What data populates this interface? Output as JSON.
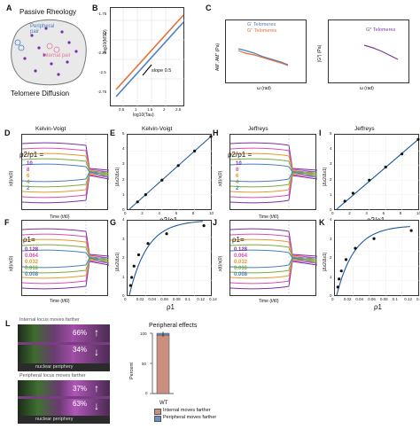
{
  "panel_a": {
    "letter": "A",
    "title": "Passive Rheology",
    "peripheral_label": "Peripheral\npair",
    "internal_label": "Internal pair",
    "footer": "Telomere Diffusion"
  },
  "panel_b": {
    "letter": "B",
    "ylabel": "log10(MSD)",
    "xlabel": "log10(Tau)",
    "slope_label": "slope 0.5",
    "yticks": [
      "-1.75",
      "-2",
      "-2.25",
      "-2.5",
      "-2.75"
    ],
    "xticks": [
      "0.5",
      "1",
      "1.5",
      "2",
      "2.5"
    ]
  },
  "panel_c": {
    "letter": "C",
    "left_ylabel": "AM', AM'' (Pa)",
    "legend_g1": "G' Telomeres",
    "legend_g2": "G'' Telomeres",
    "right_ylabel": "|G*| (Pa)",
    "right_legend": "G* Telomeres",
    "xlabel": "ω (rad)",
    "colors": {
      "g1": "#4a7fc1",
      "g2": "#e0703a",
      "gstar": "#7b3a9c"
    }
  },
  "panel_d": {
    "letter": "D",
    "title": "Kelvin-Voigt",
    "ratio_label": "ρ2/ρ1 =",
    "legend": [
      "10",
      "8",
      "6",
      "4",
      "2"
    ],
    "ylabel": "x(t)/x(0)",
    "xlabel": "Time (t/t0)",
    "xticks": [
      "0",
      "1",
      "2",
      "3",
      "4",
      "5",
      "6",
      "7",
      "8"
    ]
  },
  "panel_e": {
    "letter": "E",
    "title": "Kelvin-Voigt",
    "ylabel": "|Δx2/Δx1|",
    "xlabel": "ρ2/ρ1",
    "xticks": [
      "0",
      "2",
      "4",
      "6",
      "8",
      "10"
    ],
    "yticks": [
      "0",
      "1",
      "2",
      "3",
      "4",
      "5"
    ]
  },
  "panel_f": {
    "letter": "F",
    "ratio_label": "ρ1=",
    "legend": [
      "0.128",
      "0.064",
      "0.032",
      "0.016",
      "0.008"
    ],
    "ylabel": "x(t)/x(0)",
    "xlabel": "Time (t/t0)"
  },
  "panel_g": {
    "letter": "G",
    "ylabel": "|Δx2/Δx1|",
    "xlabel": "ρ1",
    "xticks": [
      "0",
      "0.02",
      "0.04",
      "0.06",
      "0.08",
      "0.1",
      "0.12",
      "0.14"
    ],
    "yticks": [
      "0",
      "1",
      "2",
      "3",
      "4"
    ]
  },
  "panel_h": {
    "letter": "H",
    "title": "Jeffreys",
    "ratio_label": "ρ2/ρ1 =",
    "legend": [
      "10",
      "8",
      "6",
      "4",
      "2"
    ],
    "ylabel": "x(t)/x(0)",
    "xlabel": "Time (t/t0)"
  },
  "panel_i": {
    "letter": "I",
    "title": "Jeffreys",
    "ylabel": "|Δx2/Δx1|",
    "xlabel": "ρ2/ρ1",
    "xticks": [
      "0",
      "2",
      "4",
      "6",
      "8",
      "10"
    ],
    "yticks": [
      "0",
      "1",
      "2",
      "3",
      "4",
      "5"
    ]
  },
  "panel_j": {
    "letter": "J",
    "ratio_label": "ρ1=",
    "legend": [
      "0.128",
      "0.064",
      "0.032",
      "0.016",
      "0.008"
    ],
    "ylabel": "x(t)/x(0)",
    "xlabel": "Time (t/t0)"
  },
  "panel_k": {
    "letter": "K",
    "ylabel": "|Δx2/Δx1|",
    "xlabel": "ρ1",
    "xticks": [
      "0",
      "0.02",
      "0.04",
      "0.06",
      "0.08",
      "0.1",
      "0.12",
      "0.14"
    ],
    "yticks": [
      "0",
      "1",
      "2",
      "3",
      "4"
    ]
  },
  "panel_l": {
    "letter": "L",
    "top_title": "Internal locus moves farther",
    "top_pct_a": "66%",
    "top_pct_b": "34%",
    "top_footer": "nuclear periphery",
    "bottom_title": "Peripheral locus moves farther",
    "bottom_pct_a": "37%",
    "bottom_pct_b": "63%",
    "bottom_footer": "nuclear periphery",
    "bar_title": "Peripheral effects",
    "bar_ylabel": "Percent",
    "bar_xlabel": "WT",
    "bar_yticks": [
      "0",
      "50",
      "100"
    ],
    "legend_a": "Internal moves farther",
    "legend_b": "Peripheral moves farther",
    "colors": {
      "a": "#c99080",
      "b": "#6c8fc7"
    }
  },
  "legend_colors": [
    "#7b2fa6",
    "#d94fb0",
    "#e39a2a",
    "#7cab3c",
    "#4a7fc1"
  ],
  "chart_data": [
    {
      "panel": "E",
      "type": "scatter",
      "x": [
        1,
        2,
        4,
        6,
        8,
        10
      ],
      "y": [
        0.5,
        1,
        2,
        3,
        4,
        5
      ],
      "xlim": [
        0,
        10
      ],
      "ylim": [
        0,
        5
      ]
    },
    {
      "panel": "I",
      "type": "scatter",
      "x": [
        1,
        2,
        4,
        6,
        8,
        10
      ],
      "y": [
        0.55,
        1.1,
        2,
        2.9,
        3.8,
        4.8
      ],
      "xlim": [
        0,
        10
      ],
      "ylim": [
        0,
        5
      ]
    },
    {
      "panel": "G",
      "type": "scatter",
      "x": [
        0.002,
        0.004,
        0.008,
        0.016,
        0.032,
        0.064,
        0.128
      ],
      "y": [
        0.6,
        1.1,
        1.8,
        2.5,
        3.2,
        3.8,
        4.3
      ],
      "xlim": [
        0,
        0.14
      ],
      "ylim": [
        0,
        4.5
      ]
    },
    {
      "panel": "K",
      "type": "scatter",
      "x": [
        0.002,
        0.004,
        0.008,
        0.016,
        0.032,
        0.064,
        0.128
      ],
      "y": [
        0.5,
        1.0,
        1.5,
        2.2,
        2.9,
        3.5,
        4.0
      ],
      "xlim": [
        0,
        0.14
      ],
      "ylim": [
        0,
        4.5
      ]
    },
    {
      "panel": "L",
      "type": "bar",
      "categories": [
        "WT"
      ],
      "series": [
        {
          "name": "Internal moves farther",
          "values": [
            97
          ]
        },
        {
          "name": "Peripheral moves farther",
          "values": [
            3
          ]
        }
      ],
      "ylim": [
        0,
        100
      ]
    }
  ]
}
